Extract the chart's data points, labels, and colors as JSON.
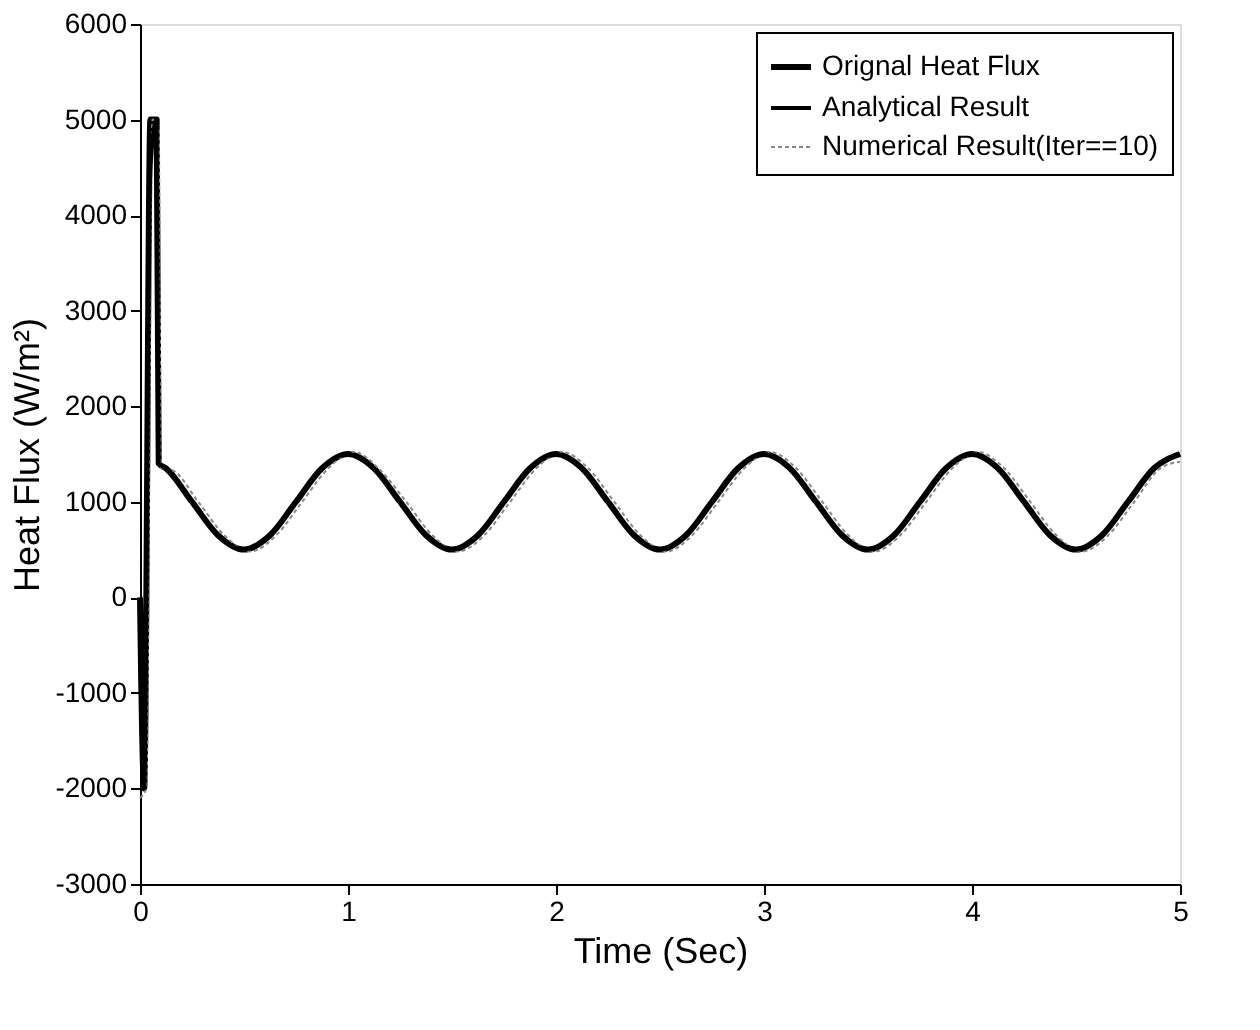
{
  "chart_data": {
    "type": "line",
    "xlabel": "Time (Sec)",
    "ylabel": "Heat Flux (W/m²)",
    "xlim": [
      0,
      5
    ],
    "xticks": [
      0,
      1,
      2,
      3,
      4,
      5
    ],
    "ylim": [
      -3000,
      6000
    ],
    "yticks": [
      -3000,
      -2000,
      -1000,
      0,
      1000,
      2000,
      3000,
      4000,
      5000,
      6000
    ],
    "grid": false,
    "legend": "top right",
    "marker": "none",
    "series": [
      {
        "name": "Orignal Heat Flux",
        "color": "#000000",
        "line_style": "solid",
        "x": [
          0,
          0.02,
          0.05,
          0.08,
          0.09,
          0.125,
          0.25,
          0.375,
          0.5,
          0.625,
          0.75,
          0.875,
          1,
          1.125,
          1.25,
          1.375,
          1.5,
          1.625,
          1.75,
          1.875,
          2,
          2.125,
          2.25,
          2.375,
          2.5,
          2.625,
          2.75,
          2.875,
          3,
          3.125,
          3.25,
          3.375,
          3.5,
          3.625,
          3.75,
          3.875,
          4,
          4.125,
          4.25,
          4.375,
          4.5,
          4.625,
          4.75,
          4.875,
          5
        ],
        "values": [
          0,
          -2000,
          5000,
          5000,
          1400,
          1350,
          1000,
          650,
          500,
          650,
          1000,
          1350,
          1500,
          1350,
          1000,
          650,
          500,
          650,
          1000,
          1350,
          1500,
          1350,
          1000,
          650,
          500,
          650,
          1000,
          1350,
          1500,
          1350,
          1000,
          650,
          500,
          650,
          1000,
          1350,
          1500,
          1350,
          1000,
          650,
          500,
          650,
          1000,
          1350,
          1500
        ]
      },
      {
        "name": "Analytical Result",
        "color": "#000000",
        "line_style": "solid",
        "x": [
          0,
          0.02,
          0.05,
          0.08,
          0.09,
          0.125,
          0.25,
          0.375,
          0.5,
          0.625,
          0.75,
          0.875,
          1,
          1.125,
          1.25,
          1.375,
          1.5,
          1.625,
          1.75,
          1.875,
          2,
          2.125,
          2.25,
          2.375,
          2.5,
          2.625,
          2.75,
          2.875,
          3,
          3.125,
          3.25,
          3.375,
          3.5,
          3.625,
          3.75,
          3.875,
          4,
          4.125,
          4.25,
          4.375,
          4.5,
          4.625,
          4.75,
          4.875,
          5
        ],
        "values": [
          -500,
          -2000,
          4500,
          5000,
          1400,
          1350,
          1000,
          650,
          500,
          650,
          1000,
          1350,
          1500,
          1350,
          1000,
          650,
          500,
          650,
          1000,
          1350,
          1500,
          1350,
          1000,
          650,
          500,
          650,
          1000,
          1350,
          1500,
          1350,
          1000,
          650,
          500,
          650,
          1000,
          1350,
          1500,
          1350,
          1000,
          650,
          500,
          650,
          1000,
          1350,
          1500
        ]
      },
      {
        "name": "Numerical Result(Iter==10)",
        "color": "#888888",
        "line_style": "dotted",
        "x": [
          0,
          0.03,
          0.06,
          0.09,
          0.1,
          0.155,
          0.28,
          0.405,
          0.53,
          0.655,
          0.78,
          0.905,
          1.03,
          1.155,
          1.28,
          1.405,
          1.53,
          1.655,
          1.78,
          1.905,
          2.03,
          2.155,
          2.28,
          2.405,
          2.53,
          2.655,
          2.78,
          2.905,
          3.03,
          3.155,
          3.28,
          3.405,
          3.53,
          3.655,
          3.78,
          3.905,
          4.03,
          4.155,
          4.28,
          4.405,
          4.53,
          4.655,
          4.78,
          4.905,
          5
        ],
        "values": [
          -2100,
          -2000,
          5000,
          4900,
          1350,
          1330,
          1000,
          650,
          480,
          650,
          1000,
          1350,
          1520,
          1330,
          1000,
          650,
          480,
          650,
          1000,
          1350,
          1520,
          1350,
          1000,
          650,
          480,
          650,
          1000,
          1350,
          1520,
          1350,
          1000,
          650,
          480,
          650,
          1000,
          1350,
          1520,
          1350,
          1000,
          650,
          480,
          650,
          1000,
          1350,
          1420
        ]
      }
    ]
  }
}
